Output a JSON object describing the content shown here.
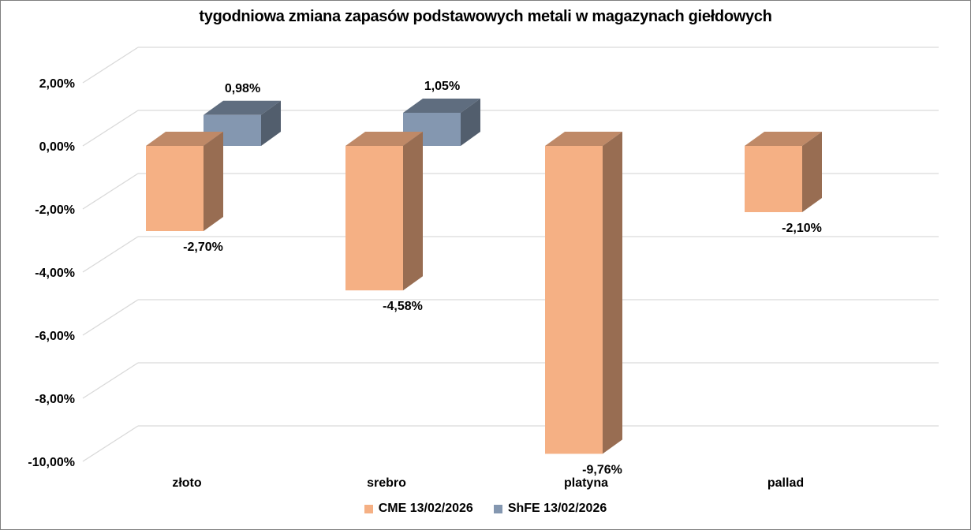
{
  "chart_data": {
    "type": "bar",
    "title": "tygodniowa zmiana zapasów podstawowych metali w magazynach giełdowych",
    "categories": [
      "złoto",
      "srebro",
      "platyna",
      "pallad"
    ],
    "series": [
      {
        "name": "CME 13/02/2026",
        "color": "#F5B084",
        "values": [
          -2.7,
          -4.58,
          -9.76,
          -2.1
        ],
        "labels": [
          "-2,70%",
          "-4,58%",
          "-9,76%",
          "-2,10%"
        ]
      },
      {
        "name": "ShFE 13/02/2026",
        "color": "#8497B0",
        "values": [
          0.98,
          1.05,
          null,
          null
        ],
        "labels": [
          "0,98%",
          "1,05%",
          "",
          ""
        ]
      }
    ],
    "ylim": [
      -10,
      2
    ],
    "yticks": [
      2,
      0,
      -2,
      -4,
      -6,
      -8,
      -10
    ],
    "ytick_labels": [
      "2,00%",
      "0,00%",
      "-2,00%",
      "-4,00%",
      "-6,00%",
      "-8,00%",
      "-10,00%"
    ],
    "grid": true,
    "legend_position": "bottom",
    "style": "3d-column"
  }
}
